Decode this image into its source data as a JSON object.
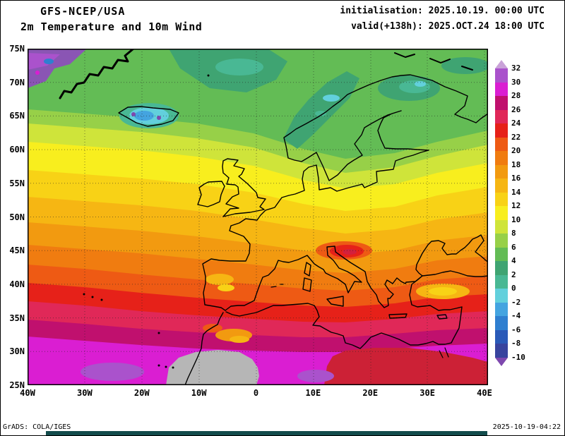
{
  "header": {
    "model": "GFS-NCEP/USA",
    "product": "2m Temperature and 10m Wind",
    "init_line": "initialisation: 2025.10.19. 00:00 UTC",
    "valid_line": "valid(+138h): 2025.OCT.24 18:00 UTC"
  },
  "footer": {
    "credit": "GrADS: COLA/IGES",
    "timestamp": "2025-10-19-04:22",
    "bar_color": "#134c4c"
  },
  "chart_data": {
    "type": "heatmap",
    "title": "2m Temperature and 10m Wind",
    "model": "GFS-NCEP/USA",
    "initialisation": "2025.10.19. 00:00 UTC",
    "valid": "2025.OCT.24 18:00 UTC",
    "forecast_hour": "+138h",
    "x_ticks": [
      "40W",
      "30W",
      "20W",
      "10W",
      "0",
      "10E",
      "20E",
      "30E",
      "40E"
    ],
    "y_ticks": [
      "75N",
      "70N",
      "65N",
      "60N",
      "55N",
      "50N",
      "45N",
      "40N",
      "35N",
      "30N",
      "25N"
    ],
    "grid": "dotted, 10 deg lon x 5 deg lat",
    "legend_position": "right",
    "colorbar": {
      "tick_labels": [
        "32",
        "30",
        "28",
        "26",
        "24",
        "22",
        "20",
        "18",
        "16",
        "14",
        "12",
        "10",
        "8",
        "6",
        "4",
        "2",
        "0",
        "-2",
        "-4",
        "-6",
        "-8",
        "-10"
      ],
      "cell_colors_top_to_bottom": [
        "#c9a2d8",
        "#aa52cc",
        "#da1ed2",
        "#c0106e",
        "#e02858",
        "#e62119",
        "#ee5a14",
        "#f07c10",
        "#f29a10",
        "#f6b613",
        "#f8d216",
        "#f8ee1e",
        "#cfe43a",
        "#97d048",
        "#63bc55",
        "#3fa472",
        "#49b894",
        "#62d0dc",
        "#44a4e0",
        "#2f7fd0",
        "#2a5ab8",
        "#38449e",
        "#7e48ae"
      ]
    },
    "approx_values_c": {
      "greenland_corner": "-10 to -4",
      "iceland": "-4 to 2",
      "norwegian_sea": "2 to 6",
      "scandinavia": "2 to 8",
      "north_atlantic_60N": "8 to 12",
      "british_isles": "8 to 12",
      "central_europe": "12 to 18",
      "alps_balkans_patch": "20 to 26",
      "iberia": "18 to 26",
      "mediterranean": "22 to 28",
      "anatolia": "14 to 18",
      "north_africa": "26 to 30",
      "sahara_south_edge": "30 to 32+"
    }
  }
}
